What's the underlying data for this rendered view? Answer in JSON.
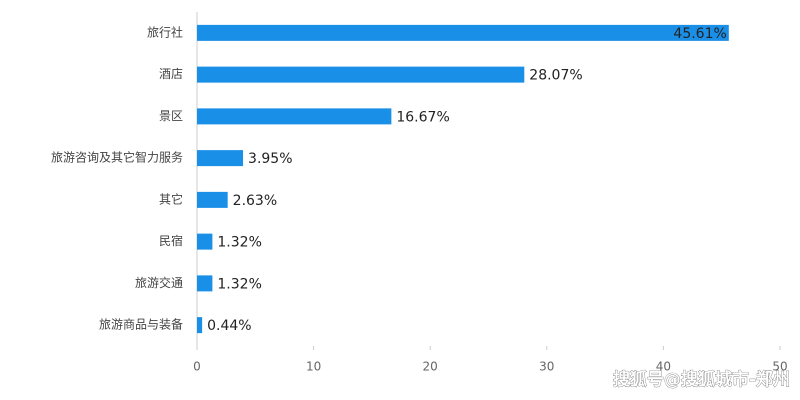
{
  "chart_data": {
    "type": "hbar",
    "categories": [
      "旅行社",
      "酒店",
      "景区",
      "旅游咨询及其它智力服务",
      "其它",
      "民宿",
      "旅游交通",
      "旅游商品与装备"
    ],
    "values": [
      45.61,
      28.07,
      16.67,
      3.95,
      2.63,
      1.32,
      1.32,
      0.44
    ],
    "value_labels": [
      "45.61%",
      "28.07%",
      "16.67%",
      "3.95%",
      "2.63%",
      "1.32%",
      "1.32%",
      "0.44%"
    ],
    "color": "#1a8fe8",
    "xlim": [
      0,
      50
    ],
    "xticks": [
      0,
      10,
      20,
      30,
      40,
      50
    ],
    "watermark": "搜狐号@搜狐城市-郑州"
  }
}
